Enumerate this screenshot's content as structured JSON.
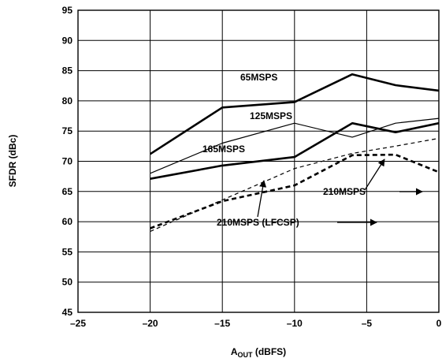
{
  "chart_data": {
    "type": "line",
    "title": "",
    "xlabel_main": "A",
    "xlabel_sub": "OUT",
    "xlabel_tail": " (dBFS)",
    "ylabel": "SFDR (dBc)",
    "xlim": [
      -25,
      0
    ],
    "ylim": [
      45,
      95
    ],
    "x_ticks": [
      -25,
      -20,
      -15,
      -10,
      -5,
      0
    ],
    "x_tick_labels": [
      "–25",
      "–20",
      "–15",
      "–10",
      "–5",
      "0"
    ],
    "y_ticks": [
      45,
      50,
      55,
      60,
      65,
      70,
      75,
      80,
      85,
      90,
      95
    ],
    "y_tick_labels": [
      "45",
      "50",
      "55",
      "60",
      "65",
      "70",
      "75",
      "80",
      "85",
      "90",
      "95"
    ],
    "grid": true,
    "series": [
      {
        "name": "65MSPS",
        "style": "thick-solid",
        "x": [
          -20,
          -15,
          -10,
          -6,
          -3,
          0
        ],
        "y": [
          71.2,
          78.9,
          79.8,
          84.4,
          82.6,
          81.7
        ]
      },
      {
        "name": "125MSPS",
        "style": "thin-solid",
        "x": [
          -20,
          -15,
          -10,
          -6,
          -3,
          0
        ],
        "y": [
          68.0,
          73.0,
          76.3,
          74.0,
          76.3,
          77.1
        ]
      },
      {
        "name": "165MSPS",
        "style": "thick-solid",
        "x": [
          -20,
          -15,
          -10,
          -6,
          -3,
          0
        ],
        "y": [
          67.1,
          69.3,
          70.7,
          76.3,
          74.8,
          76.3
        ]
      },
      {
        "name": "210MSPS",
        "style": "thick-dashed",
        "x": [
          -20,
          -15,
          -10,
          -6,
          -3,
          0
        ],
        "y": [
          58.9,
          63.4,
          66.0,
          71.0,
          71.1,
          68.2
        ]
      },
      {
        "name": "210MSPS (LFCSP)",
        "style": "thin-dashed",
        "x": [
          -20,
          -15,
          -10,
          -6,
          -3,
          0
        ],
        "y": [
          58.4,
          63.6,
          68.8,
          71.3,
          72.5,
          73.8
        ]
      }
    ],
    "annotations": [
      {
        "text": "65MSPS",
        "series": "65MSPS"
      },
      {
        "text": "125MSPS",
        "series": "125MSPS"
      },
      {
        "text": "165MSPS",
        "series": "165MSPS"
      },
      {
        "text": "210MSPS",
        "series": "210MSPS"
      },
      {
        "text": "210MSPS (LFCSP)",
        "series": "210MSPS (LFCSP)"
      }
    ]
  }
}
